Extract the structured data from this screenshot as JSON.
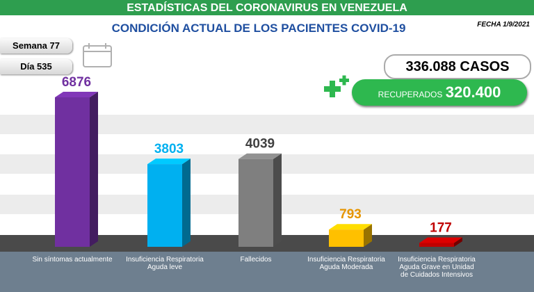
{
  "header": {
    "title": "ESTADÍSTICAS DEL CORONAVIRUS EN VENEZUELA",
    "subtitle": "CONDICIÓN ACTUAL DE LOS PACIENTES COVID-19",
    "date": "FECHA 1/9/2021"
  },
  "badges": {
    "week": "Semana 77",
    "day": "Día 535",
    "cases": "336.088 CASOS",
    "recovered_label": "RECUPERADOS",
    "recovered": "320.400"
  },
  "chart_data": {
    "type": "bar",
    "categories": [
      "Sin síntomas actualmente",
      "Insuficiencia Respiratoria Aguda leve",
      "Fallecidos",
      "Insuficiencia Respiratoria Aguda Moderada",
      "Insuficiencia Respiratoria Aguda Grave en Unidad de Cuidados Intensivos"
    ],
    "values": [
      6876,
      3803,
      4039,
      793,
      177
    ],
    "colors": [
      "#7030a0",
      "#00b0f0",
      "#7f7f7f",
      "#ffc000",
      "#c00000"
    ],
    "label_colors": [
      "#7030a0",
      "#00b0f0",
      "#404040",
      "#e69500",
      "#c00000"
    ]
  }
}
